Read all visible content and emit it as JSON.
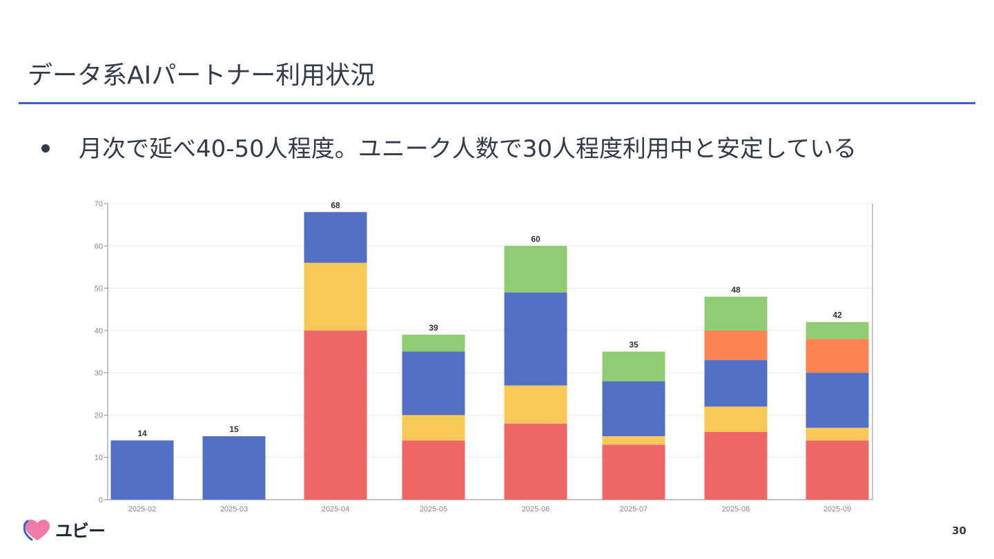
{
  "slide": {
    "title": "データ系AIパートナー利用状況",
    "bullet": "月次で延べ40-50人程度。ユニーク人数で30人程度利用中と安定している",
    "page_number": "30",
    "logo_text": "ユビー"
  },
  "colors": {
    "title_rule": "#3a5fc8",
    "series": [
      "#ee6766",
      "#f9c859",
      "#5470c6",
      "#91cc75",
      "#fc8452"
    ]
  },
  "chart_data": {
    "type": "bar",
    "stacked": true,
    "categories": [
      "2025-02",
      "2025-03",
      "2025-04",
      "2025-05",
      "2025-06",
      "2025-07",
      "2025-08",
      "2025-09"
    ],
    "series": [
      {
        "name": "red",
        "color": "#ee6766",
        "values": [
          0,
          0,
          40,
          14,
          18,
          13,
          16,
          14
        ]
      },
      {
        "name": "yellow",
        "color": "#f9c859",
        "values": [
          0,
          0,
          16,
          6,
          9,
          2,
          6,
          3
        ]
      },
      {
        "name": "blue",
        "color": "#5470c6",
        "values": [
          14,
          15,
          12,
          15,
          22,
          13,
          11,
          13
        ]
      },
      {
        "name": "orange",
        "color": "#fc8452",
        "values": [
          0,
          0,
          0,
          0,
          0,
          0,
          7,
          8
        ]
      },
      {
        "name": "green",
        "color": "#91cc75",
        "values": [
          0,
          0,
          0,
          4,
          11,
          7,
          8,
          4
        ]
      }
    ],
    "totals": [
      14,
      15,
      68,
      39,
      60,
      35,
      48,
      42
    ],
    "ylim": [
      0,
      70
    ],
    "yticks": [
      0,
      10,
      20,
      30,
      40,
      50,
      60,
      70
    ],
    "grid": true,
    "title": "",
    "xlabel": "",
    "ylabel": ""
  }
}
